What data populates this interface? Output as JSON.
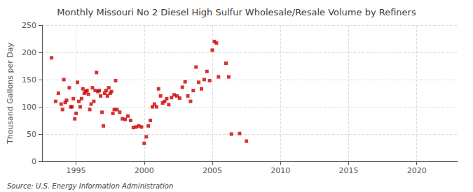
{
  "chart_data": {
    "type": "scatter",
    "title": "Monthly Missouri No 2 Diesel High Sulfur Wholesale/Resale Volume by Refiners",
    "ylabel": "Thousand Gallons per Day",
    "source": "Source: U.S. Energy Information Administration",
    "color": "#cc0000",
    "marker": "square",
    "grid": true,
    "xlim": [
      1992.5,
      2023
    ],
    "ylim": [
      0,
      250
    ],
    "xticks": [
      1995,
      2000,
      2005,
      2010,
      2015,
      2020
    ],
    "yticks": [
      0,
      50,
      100,
      150,
      200,
      250
    ],
    "x": [
      1993.2,
      1993.5,
      1993.7,
      1993.9,
      1994.0,
      1994.1,
      1994.2,
      1994.3,
      1994.5,
      1994.6,
      1994.7,
      1994.8,
      1994.9,
      1995.0,
      1995.1,
      1995.2,
      1995.3,
      1995.4,
      1995.5,
      1995.6,
      1995.7,
      1995.8,
      1995.9,
      1996.0,
      1996.1,
      1996.2,
      1996.3,
      1996.4,
      1996.5,
      1996.6,
      1996.7,
      1996.8,
      1996.9,
      1997.0,
      1997.1,
      1997.2,
      1997.3,
      1997.4,
      1997.5,
      1997.6,
      1997.7,
      1997.8,
      1997.9,
      1998.0,
      1998.2,
      1998.4,
      1998.6,
      1998.8,
      1999.0,
      1999.2,
      1999.4,
      1999.6,
      1999.8,
      2000.0,
      2000.15,
      2000.3,
      2000.45,
      2000.6,
      2000.75,
      2000.9,
      2001.05,
      2001.2,
      2001.35,
      2001.5,
      2001.65,
      2001.8,
      2002.0,
      2002.2,
      2002.4,
      2002.6,
      2002.8,
      2003.0,
      2003.2,
      2003.4,
      2003.6,
      2003.8,
      2004.0,
      2004.2,
      2004.4,
      2004.6,
      2004.8,
      2005.0,
      2005.15,
      2005.3,
      2005.45,
      2006.0,
      2006.2,
      2006.4,
      2007.0,
      2007.5
    ],
    "values": [
      190,
      110,
      125,
      105,
      95,
      150,
      108,
      112,
      135,
      100,
      100,
      115,
      78,
      88,
      145,
      110,
      100,
      115,
      133,
      125,
      128,
      130,
      123,
      95,
      105,
      135,
      110,
      130,
      163,
      128,
      130,
      120,
      90,
      65,
      125,
      130,
      120,
      135,
      125,
      128,
      88,
      95,
      148,
      95,
      90,
      78,
      77,
      83,
      75,
      62,
      63,
      65,
      63,
      33,
      45,
      65,
      75,
      100,
      105,
      100,
      133,
      120,
      107,
      110,
      115,
      104,
      117,
      122,
      120,
      116,
      136,
      146,
      120,
      110,
      130,
      173,
      145,
      133,
      150,
      165,
      148,
      204,
      220,
      217,
      155,
      180,
      155,
      50,
      51,
      37
    ]
  }
}
